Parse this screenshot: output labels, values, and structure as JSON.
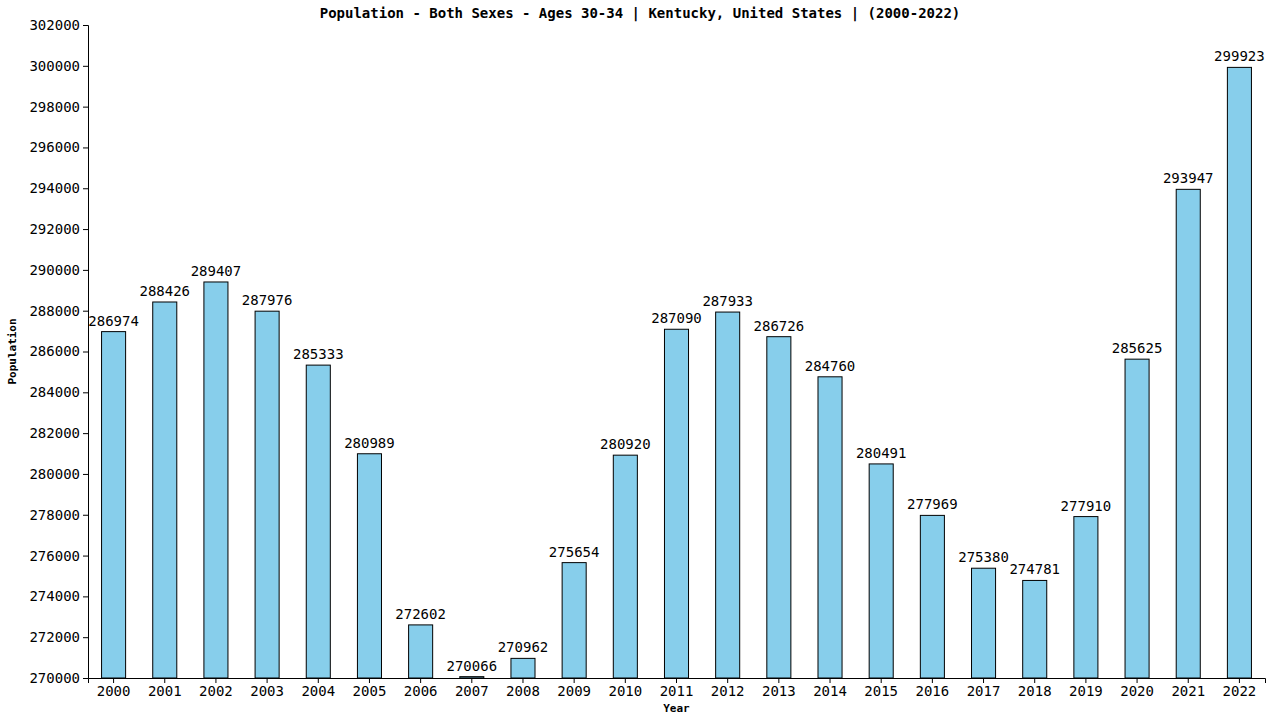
{
  "chart_data": {
    "type": "bar",
    "title": "Population - Both Sexes - Ages 30-34 | Kentucky, United States |  (2000-2022)",
    "x_label": "Year",
    "y_label": "Population",
    "categories": [
      "2000",
      "2001",
      "2002",
      "2003",
      "2004",
      "2005",
      "2006",
      "2007",
      "2008",
      "2009",
      "2010",
      "2011",
      "2012",
      "2013",
      "2014",
      "2015",
      "2016",
      "2017",
      "2018",
      "2019",
      "2020",
      "2021",
      "2022"
    ],
    "values": [
      286974,
      288426,
      289407,
      287976,
      285333,
      280989,
      272602,
      270066,
      270962,
      275654,
      280920,
      287090,
      287933,
      286726,
      284760,
      280491,
      277969,
      275380,
      274781,
      277910,
      285625,
      293947,
      299923
    ],
    "color": "#87ceeb",
    "ylim": [
      270000,
      302000
    ],
    "yticks": [
      270000,
      272000,
      274000,
      276000,
      278000,
      280000,
      282000,
      284000,
      286000,
      288000,
      290000,
      292000,
      294000,
      296000,
      298000,
      300000,
      302000
    ],
    "grid": false,
    "data_labels": true
  }
}
